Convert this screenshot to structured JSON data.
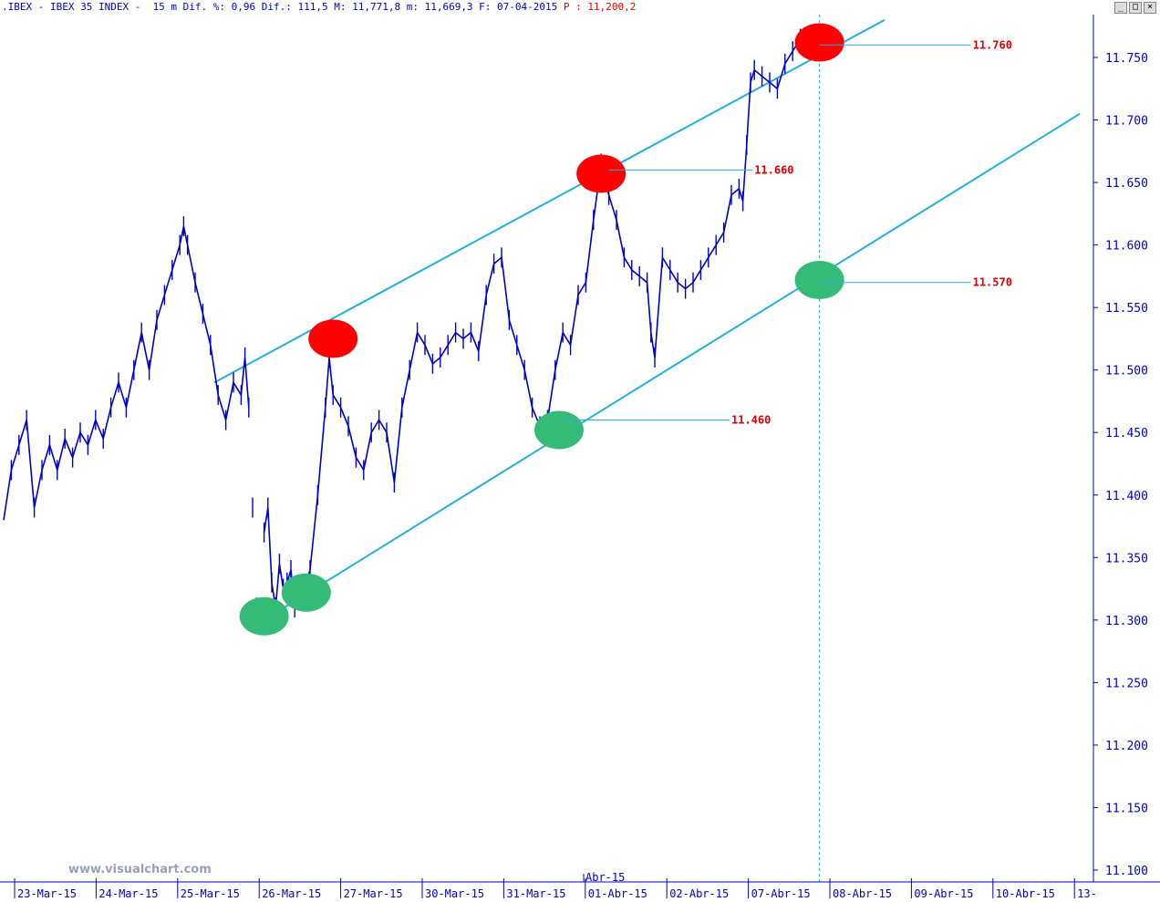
{
  "header": {
    "text": ".IBEX - IBEX 35 INDEX -  15 m Dif. %: 0,96 Dif.: 111,5 M: 11,771,8 m: 11,669,3 F: 07-04-2015",
    "p_label": "P : 11,200,2"
  },
  "window_controls": [
    "_",
    "□",
    "×"
  ],
  "watermark": "www.visualchart.com",
  "month_marker": "Abr-15",
  "colors": {
    "price": "#0000cc",
    "channel": "#20b0e0",
    "resistance": "#ff0000",
    "support": "#33bb77",
    "level_text": "#dd0000",
    "axis": "#0000cc"
  },
  "chart_data": {
    "type": "line",
    "title": "IBEX 35 INDEX 15 m",
    "ylim": [
      11100,
      11800
    ],
    "y_ticks": [
      "11.100",
      "11.150",
      "11.200",
      "11.250",
      "11.300",
      "11.350",
      "11.400",
      "11.450",
      "11.500",
      "11.550",
      "11.600",
      "11.650",
      "11.700",
      "11.750"
    ],
    "x_labels": [
      "23-Mar-15",
      "24-Mar-15",
      "25-Mar-15",
      "26-Mar-15",
      "27-Mar-15",
      "30-Mar-15",
      "31-Mar-15",
      "01-Abr-15",
      "02-Abr-15",
      "07-Abr-15",
      "08-Abr-15",
      "09-Abr-15",
      "10-Abr-15",
      "13-"
    ],
    "series": [
      {
        "values": [
          [
            0,
            11380
          ],
          [
            2,
            11420
          ],
          [
            4,
            11440
          ],
          [
            6,
            11460
          ],
          [
            8,
            11390
          ],
          [
            10,
            11420
          ],
          [
            12,
            11440
          ],
          [
            14,
            11420
          ],
          [
            16,
            11445
          ],
          [
            18,
            11430
          ],
          [
            20,
            11450
          ],
          [
            22,
            11440
          ],
          [
            24,
            11460
          ],
          [
            26,
            11445
          ],
          [
            28,
            11470
          ],
          [
            30,
            11490
          ],
          [
            32,
            11470
          ],
          [
            34,
            11500
          ],
          [
            36,
            11530
          ],
          [
            38,
            11500
          ],
          [
            40,
            11540
          ],
          [
            42,
            11560
          ],
          [
            44,
            11580
          ],
          [
            46,
            11600
          ],
          [
            47,
            11615
          ],
          [
            48,
            11600
          ],
          [
            50,
            11570
          ],
          [
            52,
            11545
          ],
          [
            54,
            11520
          ],
          [
            56,
            11480
          ],
          [
            58,
            11460
          ],
          [
            60,
            11490
          ],
          [
            62,
            11480
          ],
          [
            63,
            11510
          ],
          [
            64,
            11470
          ],
          [
            65,
            11390
          ],
          [
            66,
            11310
          ],
          [
            67,
            11300
          ],
          [
            68,
            11370
          ],
          [
            69,
            11390
          ],
          [
            70,
            11330
          ],
          [
            71,
            11310
          ],
          [
            72,
            11345
          ],
          [
            73,
            11325
          ],
          [
            74,
            11330
          ],
          [
            75,
            11340
          ],
          [
            76,
            11310
          ],
          [
            78,
            11320
          ],
          [
            80,
            11340
          ],
          [
            82,
            11400
          ],
          [
            84,
            11470
          ],
          [
            85,
            11510
          ],
          [
            86,
            11480
          ],
          [
            88,
            11470
          ],
          [
            90,
            11455
          ],
          [
            92,
            11430
          ],
          [
            94,
            11420
          ],
          [
            96,
            11450
          ],
          [
            98,
            11460
          ],
          [
            100,
            11450
          ],
          [
            102,
            11410
          ],
          [
            104,
            11470
          ],
          [
            106,
            11500
          ],
          [
            108,
            11530
          ],
          [
            110,
            11520
          ],
          [
            112,
            11505
          ],
          [
            114,
            11510
          ],
          [
            116,
            11520
          ],
          [
            118,
            11530
          ],
          [
            120,
            11525
          ],
          [
            122,
            11530
          ],
          [
            124,
            11515
          ],
          [
            126,
            11560
          ],
          [
            128,
            11585
          ],
          [
            130,
            11590
          ],
          [
            132,
            11540
          ],
          [
            134,
            11520
          ],
          [
            136,
            11500
          ],
          [
            138,
            11470
          ],
          [
            140,
            11455
          ],
          [
            142,
            11460
          ],
          [
            144,
            11500
          ],
          [
            146,
            11530
          ],
          [
            148,
            11520
          ],
          [
            150,
            11560
          ],
          [
            152,
            11570
          ],
          [
            154,
            11620
          ],
          [
            156,
            11665
          ],
          [
            158,
            11640
          ],
          [
            160,
            11620
          ],
          [
            162,
            11590
          ],
          [
            164,
            11580
          ],
          [
            166,
            11575
          ],
          [
            168,
            11570
          ],
          [
            169,
            11530
          ],
          [
            170,
            11510
          ],
          [
            172,
            11590
          ],
          [
            174,
            11580
          ],
          [
            176,
            11570
          ],
          [
            178,
            11565
          ],
          [
            180,
            11570
          ],
          [
            182,
            11580
          ],
          [
            184,
            11590
          ],
          [
            186,
            11600
          ],
          [
            188,
            11610
          ],
          [
            190,
            11640
          ],
          [
            192,
            11645
          ],
          [
            193,
            11635
          ],
          [
            194,
            11680
          ],
          [
            195,
            11730
          ],
          [
            196,
            11740
          ],
          [
            198,
            11735
          ],
          [
            200,
            11730
          ],
          [
            202,
            11725
          ],
          [
            204,
            11745
          ],
          [
            206,
            11755
          ],
          [
            208,
            11765
          ],
          [
            210,
            11758
          ],
          [
            212,
            11755
          ]
        ]
      }
    ],
    "channel_lines": [
      {
        "name": "upper",
        "from": [
          55,
          11490
        ],
        "to": [
          230,
          11780
        ]
      },
      {
        "name": "lower",
        "from": [
          68,
          11300
        ],
        "to": [
          281,
          11705
        ]
      }
    ],
    "highlights": [
      {
        "kind": "resistance",
        "x": 86,
        "y": 11525,
        "label": ""
      },
      {
        "kind": "resistance",
        "x": 156,
        "y": 11657,
        "label": "11.660"
      },
      {
        "kind": "resistance",
        "x": 213,
        "y": 11762,
        "label": "11.760"
      },
      {
        "kind": "support",
        "x": 68,
        "y": 11303,
        "label": ""
      },
      {
        "kind": "support",
        "x": 79,
        "y": 11322,
        "label": ""
      },
      {
        "kind": "support",
        "x": 145,
        "y": 11452,
        "label": "11.460"
      },
      {
        "kind": "support",
        "x": 213,
        "y": 11572,
        "label": "11.570"
      }
    ],
    "level_labels": [
      {
        "text": "11.760",
        "y": 11760,
        "from_x": 213,
        "to_x": 253
      },
      {
        "text": "11.660",
        "y": 11660,
        "from_x": 158,
        "to_x": 196
      },
      {
        "text": "11.570",
        "y": 11570,
        "from_x": 213,
        "to_x": 253
      },
      {
        "text": "11.460",
        "y": 11460,
        "from_x": 146,
        "to_x": 190
      }
    ],
    "vertical_marker_x": 213
  }
}
